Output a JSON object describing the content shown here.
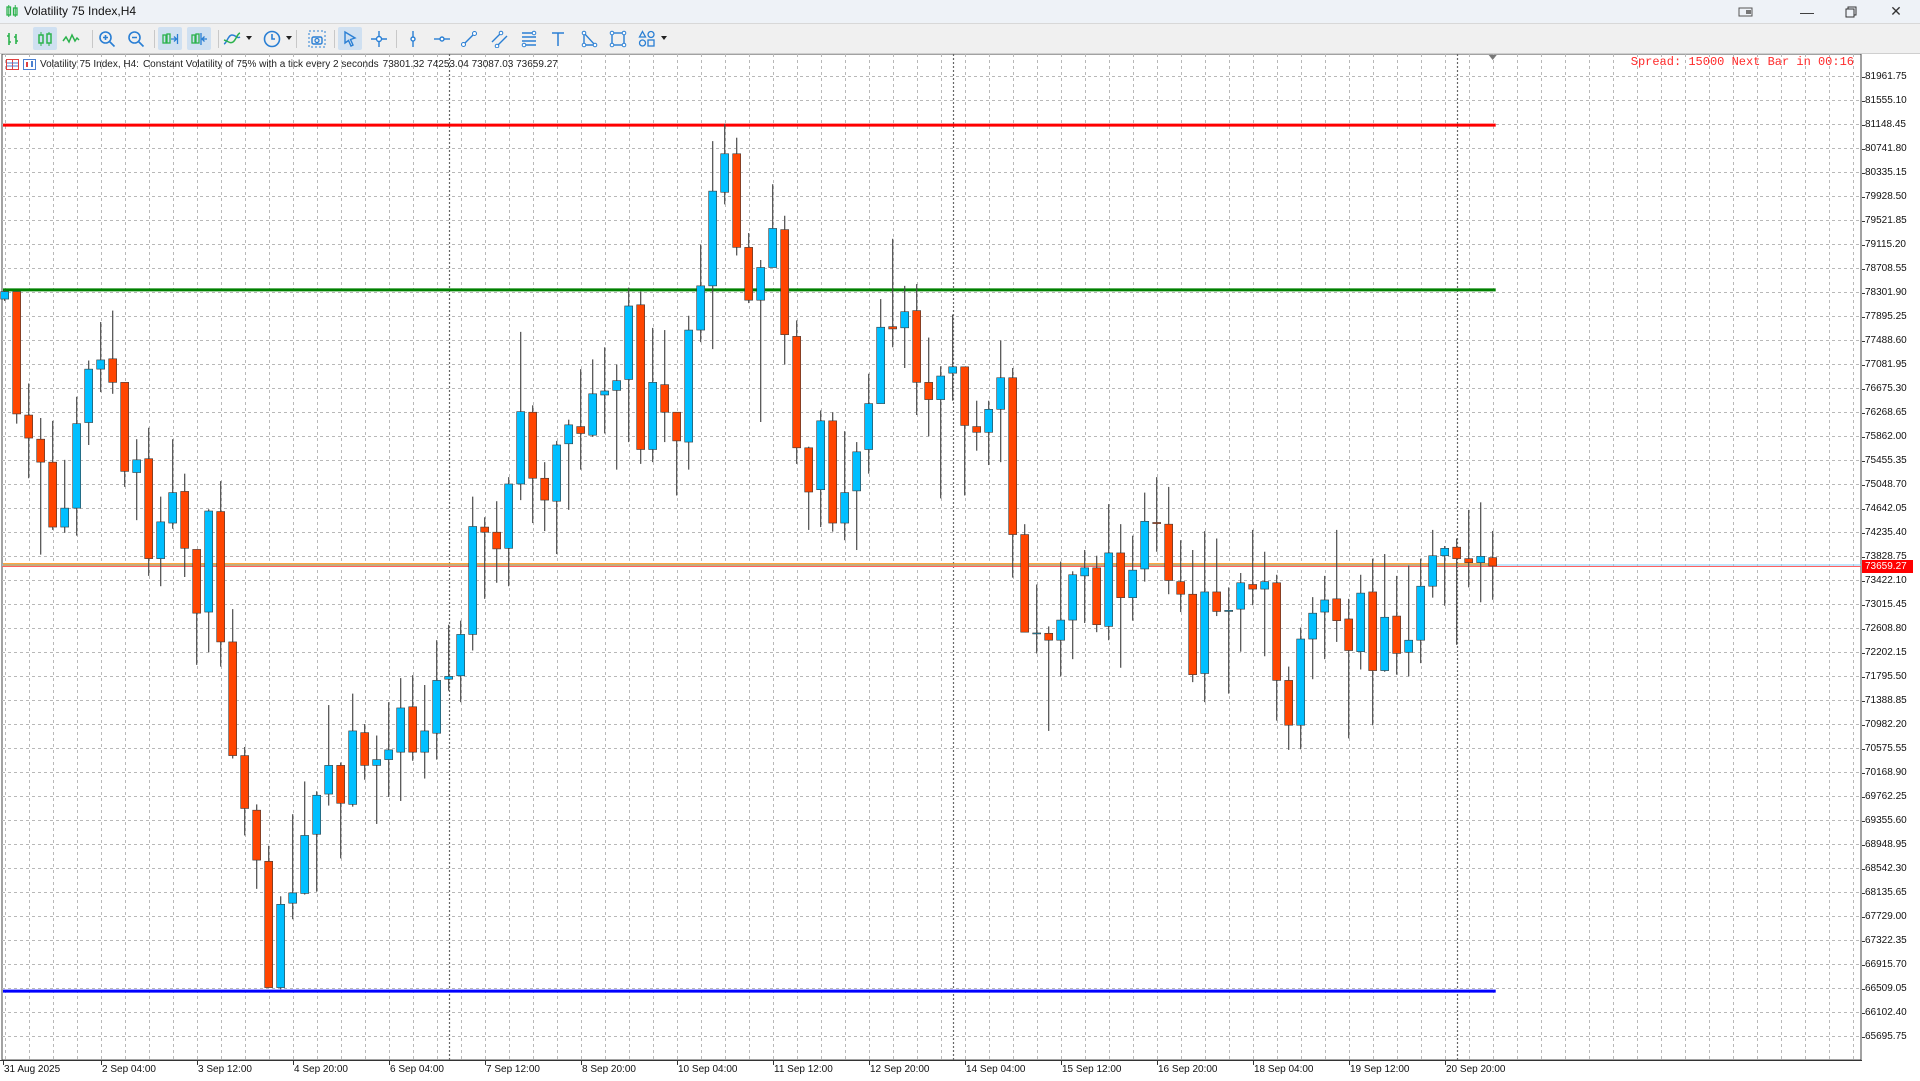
{
  "window": {
    "title": "Volatility 75 Index,H4"
  },
  "toolbar": {
    "buttons": [
      {
        "name": "bar-chart-button",
        "icon": "bar-chart-icon",
        "active": false
      },
      {
        "name": "candlestick-chart-button",
        "icon": "candlestick-icon",
        "active": true
      },
      {
        "name": "line-chart-button",
        "icon": "line-chart-icon",
        "active": false
      },
      {
        "name": "zoom-in-button",
        "icon": "zoom-in-icon",
        "active": false
      },
      {
        "name": "zoom-out-button",
        "icon": "zoom-out-icon",
        "active": false
      },
      {
        "name": "autoscroll-button",
        "icon": "autoscroll-icon",
        "active": true
      },
      {
        "name": "chart-shift-button",
        "icon": "chart-shift-icon",
        "active": true
      },
      {
        "name": "indicators-button",
        "icon": "indicators-icon",
        "active": false,
        "dropdown": true
      },
      {
        "name": "periods-button",
        "icon": "clock-icon",
        "active": false,
        "dropdown": true
      },
      {
        "name": "screenshot-button",
        "icon": "camera-icon",
        "active": false
      },
      {
        "name": "cursor-button",
        "icon": "cursor-icon",
        "active": true
      },
      {
        "name": "crosshair-button",
        "icon": "crosshair-icon",
        "active": false
      },
      {
        "name": "vertical-line-button",
        "icon": "vertical-line-icon",
        "active": false
      },
      {
        "name": "horizontal-line-button",
        "icon": "horizontal-line-icon",
        "active": false
      },
      {
        "name": "trendline-button",
        "icon": "trendline-icon",
        "active": false
      },
      {
        "name": "equidistant-channel-button",
        "icon": "channel-icon",
        "active": false
      },
      {
        "name": "fibonacci-button",
        "icon": "fibonacci-icon",
        "active": false
      },
      {
        "name": "text-button",
        "icon": "text-icon",
        "active": false
      },
      {
        "name": "triangle-button",
        "icon": "triangle-icon",
        "active": false
      },
      {
        "name": "rectangle-button",
        "icon": "rectangle-icon",
        "active": false
      },
      {
        "name": "shapes-button",
        "icon": "shapes-icon",
        "active": false,
        "dropdown": true
      }
    ]
  },
  "info_line": {
    "symbol": "Volatility 75 Index, H4:",
    "description": "Constant Volatility of 75% with a tick every 2 seconds",
    "ohlc": "73801.32 74253.04 73087.03 73659.27"
  },
  "spread_text": "Spread: 15000 Next Bar in 00:16",
  "close_price_label": "73659.27",
  "colors": {
    "bull": "#00bfff",
    "bear": "#ff4500",
    "resistance_line": "#ff0000",
    "level_line": "#008000",
    "current_level_line": "#ff8c00",
    "support_line": "#0000ff",
    "bid_line": "#ff6060",
    "grid": "#b8b8b8"
  },
  "chart_data": {
    "type": "candlestick",
    "title": "Volatility 75 Index,H4",
    "timeframe": "H4",
    "ylim": [
      65695.75,
      81961.75
    ],
    "grid": true,
    "y_ticks": [
      "81961.75",
      "81555.10",
      "81148.45",
      "80741.80",
      "80335.15",
      "79928.50",
      "79521.85",
      "79115.20",
      "78708.55",
      "78301.90",
      "77895.25",
      "77488.60",
      "77081.95",
      "76675.30",
      "76268.65",
      "75862.00",
      "75455.35",
      "75048.70",
      "74642.05",
      "74235.40",
      "73828.75",
      "73422.10",
      "73015.45",
      "72608.80",
      "72202.15",
      "71795.50",
      "71388.85",
      "70982.20",
      "70575.55",
      "70168.90",
      "69762.25",
      "69355.60",
      "68948.95",
      "68542.30",
      "68135.65",
      "67729.00",
      "67322.35",
      "66915.70",
      "66509.05",
      "66102.40",
      "65695.75"
    ],
    "x_labels": [
      {
        "bar": 0,
        "text": "31 Aug 2025"
      },
      {
        "bar": 8,
        "text": "2 Sep 04:00"
      },
      {
        "bar": 16,
        "text": "3 Sep 12:00"
      },
      {
        "bar": 24,
        "text": "4 Sep 20:00"
      },
      {
        "bar": 32,
        "text": "6 Sep 04:00"
      },
      {
        "bar": 40,
        "text": "7 Sep 12:00"
      },
      {
        "bar": 48,
        "text": "8 Sep 20:00"
      },
      {
        "bar": 56,
        "text": "10 Sep 04:00"
      },
      {
        "bar": 64,
        "text": "11 Sep 12:00"
      },
      {
        "bar": 72,
        "text": "12 Sep 20:00"
      },
      {
        "bar": 80,
        "text": "14 Sep 04:00"
      },
      {
        "bar": 88,
        "text": "15 Sep 12:00"
      },
      {
        "bar": 96,
        "text": "16 Sep 20:00"
      },
      {
        "bar": 104,
        "text": "18 Sep 04:00"
      },
      {
        "bar": 112,
        "text": "19 Sep 12:00"
      },
      {
        "bar": 120,
        "text": "20 Sep 20:00"
      }
    ],
    "period_separators": [
      37,
      79,
      121
    ],
    "horizontal_lines": [
      {
        "name": "resistance-line",
        "price": 81130,
        "color": "#ff0000",
        "width": 3
      },
      {
        "name": "level-line",
        "price": 78338,
        "color": "#008000",
        "width": 3
      },
      {
        "name": "current-level-line",
        "price": 73680,
        "color": "#ff8c00",
        "width": 3
      },
      {
        "name": "support-line",
        "price": 66457,
        "color": "#0000ff",
        "width": 3
      }
    ],
    "bid": 73659.27,
    "ohlc": [
      [
        78182,
        78330,
        78150,
        78308
      ],
      [
        78308,
        78308,
        76071,
        76236
      ],
      [
        76217,
        76752,
        75146,
        75827
      ],
      [
        75808,
        76168,
        73852,
        75419
      ],
      [
        75419,
        76119,
        74271,
        74319
      ],
      [
        74319,
        75458,
        74222,
        74640
      ],
      [
        74640,
        76528,
        74173,
        76071
      ],
      [
        76090,
        77141,
        75710,
        76995
      ],
      [
        76995,
        77793,
        76606,
        77151
      ],
      [
        77170,
        77987,
        76577,
        76771
      ],
      [
        76771,
        76771,
        75000,
        75263
      ],
      [
        75243,
        75808,
        74436,
        75458
      ],
      [
        75477,
        76002,
        73492,
        73784
      ],
      [
        73784,
        74835,
        73317,
        74407
      ],
      [
        74387,
        75808,
        74290,
        74903
      ],
      [
        74923,
        75224,
        73473,
        73959
      ],
      [
        73940,
        73940,
        71984,
        72860
      ],
      [
        72879,
        74621,
        72198,
        74591
      ],
      [
        74582,
        75097,
        71955,
        72373
      ],
      [
        72373,
        72928,
        70398,
        70447
      ],
      [
        70447,
        70593,
        69094,
        69551
      ],
      [
        69522,
        69620,
        68189,
        68676
      ],
      [
        68656,
        68919,
        66516,
        66516
      ],
      [
        66516,
        68063,
        66487,
        67927
      ],
      [
        67946,
        69454,
        67674,
        68121
      ],
      [
        68111,
        70009,
        68092,
        69094
      ],
      [
        69114,
        69843,
        68141,
        69775
      ],
      [
        69795,
        71303,
        69600,
        70281
      ],
      [
        70281,
        70330,
        68705,
        69639
      ],
      [
        69620,
        71497,
        69581,
        70865
      ],
      [
        70836,
        70982,
        70038,
        70281
      ],
      [
        70281,
        70787,
        69289,
        70379
      ],
      [
        70379,
        71352,
        69746,
        70544
      ],
      [
        70505,
        71760,
        69678,
        71254
      ],
      [
        71274,
        71809,
        70359,
        70505
      ],
      [
        70505,
        71643,
        70058,
        70865
      ],
      [
        70826,
        72402,
        70379,
        71721
      ],
      [
        71741,
        72665,
        71546,
        71789
      ],
      [
        71799,
        72733,
        71352,
        72500
      ],
      [
        72500,
        74835,
        72227,
        74329
      ],
      [
        74319,
        74485,
        73103,
        74232
      ],
      [
        74232,
        74757,
        73375,
        73949
      ],
      [
        73959,
        75165,
        73317,
        75049
      ],
      [
        75049,
        77627,
        74776,
        76275
      ],
      [
        76265,
        76382,
        74387,
        75146
      ],
      [
        75146,
        75419,
        74251,
        74776
      ],
      [
        74757,
        75779,
        73862,
        75710
      ],
      [
        75730,
        76139,
        74611,
        76051
      ],
      [
        76022,
        76995,
        75292,
        75905
      ],
      [
        75876,
        77160,
        75847,
        76577
      ],
      [
        76557,
        77365,
        75905,
        76625
      ],
      [
        76635,
        77073,
        75292,
        76800
      ],
      [
        76820,
        78377,
        75759,
        78065
      ],
      [
        78085,
        78308,
        75390,
        75633
      ],
      [
        75633,
        77695,
        75419,
        76771
      ],
      [
        76732,
        77657,
        75759,
        76265
      ],
      [
        76265,
        76265,
        74854,
        75779
      ],
      [
        75759,
        77900,
        75292,
        77657
      ],
      [
        77657,
        79106,
        77452,
        78406
      ],
      [
        78406,
        80858,
        77335,
        80011
      ],
      [
        79992,
        81150,
        79787,
        80644
      ],
      [
        80644,
        80916,
        78921,
        79058
      ],
      [
        79058,
        79301,
        78114,
        78163
      ],
      [
        78163,
        78844,
        76100,
        78717
      ],
      [
        78717,
        80128,
        78717,
        79379
      ],
      [
        79359,
        79593,
        77073,
        77579
      ],
      [
        77550,
        77822,
        75390,
        75662
      ],
      [
        75662,
        75681,
        74271,
        74913
      ],
      [
        74952,
        76295,
        74319,
        76119
      ],
      [
        76119,
        76265,
        74242,
        74387
      ],
      [
        74387,
        75944,
        74096,
        74903
      ],
      [
        74932,
        75759,
        73930,
        75594
      ],
      [
        75633,
        76917,
        75224,
        76411
      ],
      [
        76411,
        78182,
        76411,
        77705
      ],
      [
        77715,
        79204,
        77365,
        77676
      ],
      [
        77695,
        78406,
        77014,
        77968
      ],
      [
        77987,
        78435,
        76217,
        76771
      ],
      [
        76771,
        77530,
        75857,
        76479
      ],
      [
        76479,
        77044,
        74806,
        76878
      ],
      [
        76927,
        77919,
        76460,
        77034
      ],
      [
        77034,
        77034,
        74854,
        76041
      ],
      [
        76022,
        76460,
        75613,
        75925
      ],
      [
        75925,
        76460,
        75370,
        76314
      ],
      [
        76314,
        77481,
        75419,
        76849
      ],
      [
        76849,
        77014,
        73463,
        74192
      ],
      [
        74192,
        74368,
        72538,
        72538
      ],
      [
        72519,
        73346,
        72178,
        72525
      ],
      [
        72519,
        72636,
        70865,
        72402
      ],
      [
        72402,
        73735,
        71789,
        72743
      ],
      [
        72743,
        73570,
        72081,
        73511
      ],
      [
        73492,
        73930,
        72694,
        73628
      ],
      [
        73628,
        73833,
        72538,
        72665
      ],
      [
        72636,
        74708,
        72402,
        73881
      ],
      [
        73881,
        74368,
        71935,
        73123
      ],
      [
        73123,
        74173,
        72733,
        73589
      ],
      [
        73609,
        74903,
        73395,
        74417
      ],
      [
        74397,
        75165,
        73901,
        74378
      ],
      [
        74368,
        75000,
        73181,
        73414
      ],
      [
        73395,
        74096,
        72879,
        73181
      ],
      [
        73181,
        73930,
        71692,
        71818
      ],
      [
        71838,
        74251,
        71352,
        73220
      ],
      [
        73220,
        74125,
        72811,
        72889
      ],
      [
        72889,
        73297,
        71497,
        72908
      ],
      [
        72928,
        73541,
        72208,
        73375
      ],
      [
        73346,
        74271,
        72995,
        73268
      ],
      [
        73268,
        73901,
        72130,
        73395
      ],
      [
        73375,
        73511,
        71040,
        71721
      ],
      [
        71721,
        71955,
        70544,
        70962
      ],
      [
        70962,
        72616,
        70554,
        72422
      ],
      [
        72422,
        73132,
        71741,
        72860
      ],
      [
        72879,
        73492,
        72081,
        73084
      ],
      [
        73103,
        74271,
        72373,
        72733
      ],
      [
        72762,
        73103,
        70738,
        72227
      ],
      [
        72208,
        73511,
        71906,
        73200
      ],
      [
        73220,
        73784,
        70962,
        71887
      ],
      [
        71887,
        73862,
        71867,
        72791
      ],
      [
        72811,
        73492,
        71818,
        72178
      ],
      [
        72198,
        73667,
        71789,
        72402
      ],
      [
        72402,
        73784,
        72013,
        73317
      ],
      [
        73317,
        74271,
        73123,
        73833
      ],
      [
        73833,
        73998,
        72986,
        73959
      ],
      [
        73978,
        74125,
        72324,
        73784
      ],
      [
        73784,
        74611,
        73297,
        73716
      ],
      [
        73716,
        74738,
        73044,
        73823
      ],
      [
        73801.32,
        74253.04,
        73087.03,
        73659.27
      ]
    ]
  }
}
